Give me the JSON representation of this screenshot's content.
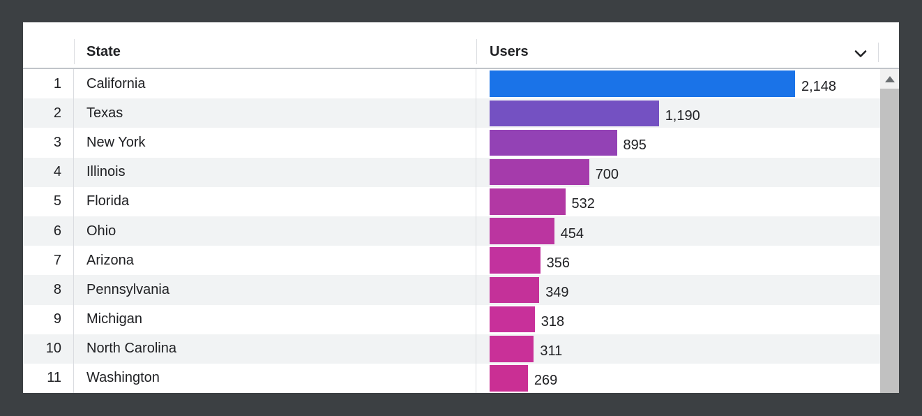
{
  "window": {
    "frame_color": "#3c4043"
  },
  "header": {
    "state_label": "State",
    "users_label": "Users"
  },
  "table": {
    "max_value": 2148,
    "rows": [
      {
        "index": "1",
        "state": "California",
        "users_label": "2,148",
        "users_value": 2148,
        "bar_color": "#1a73e8"
      },
      {
        "index": "2",
        "state": "Texas",
        "users_label": "1,190",
        "users_value": 1190,
        "bar_color": "#7451c2"
      },
      {
        "index": "3",
        "state": "New York",
        "users_label": "895",
        "users_value": 895,
        "bar_color": "#9342b5"
      },
      {
        "index": "4",
        "state": "Illinois",
        "users_label": "700",
        "users_value": 700,
        "bar_color": "#a53bab"
      },
      {
        "index": "5",
        "state": "Florida",
        "users_label": "532",
        "users_value": 532,
        "bar_color": "#b238a4"
      },
      {
        "index": "6",
        "state": "Ohio",
        "users_label": "454",
        "users_value": 454,
        "bar_color": "#bb35a0"
      },
      {
        "index": "7",
        "state": "Arizona",
        "users_label": "356",
        "users_value": 356,
        "bar_color": "#c2329e"
      },
      {
        "index": "8",
        "state": "Pennsylvania",
        "users_label": "349",
        "users_value": 349,
        "bar_color": "#c43199"
      },
      {
        "index": "9",
        "state": "Michigan",
        "users_label": "318",
        "users_value": 318,
        "bar_color": "#c8309a"
      },
      {
        "index": "10",
        "state": "North Carolina",
        "users_label": "311",
        "users_value": 311,
        "bar_color": "#c93098"
      },
      {
        "index": "11",
        "state": "Washington",
        "users_label": "269",
        "users_value": 269,
        "bar_color": "#ca2f94"
      }
    ]
  },
  "icons": {
    "sort_chevron": "chevron-down-icon",
    "scroll_up": "triangle-up-icon"
  },
  "colors": {
    "row_stripe": "#f1f3f4",
    "divider": "#dadce0",
    "header_border": "#c0c4c9",
    "text": "#202124",
    "scrollbar_track": "#f1f1f1",
    "scrollbar_thumb": "#c1c1c1",
    "bar_blue": "#1a73e8",
    "bar_magenta": "#ca2f94"
  },
  "chart_data": {
    "type": "bar",
    "orientation": "horizontal",
    "categories": [
      "California",
      "Texas",
      "New York",
      "Illinois",
      "Florida",
      "Ohio",
      "Arizona",
      "Pennsylvania",
      "Michigan",
      "North Carolina",
      "Washington"
    ],
    "values": [
      2148,
      1190,
      895,
      700,
      532,
      454,
      356,
      349,
      318,
      311,
      269
    ],
    "value_labels": [
      "2,148",
      "1,190",
      "895",
      "700",
      "532",
      "454",
      "356",
      "349",
      "318",
      "311",
      "269"
    ],
    "title": "",
    "xlabel": "Users",
    "ylabel": "State",
    "xlim": [
      0,
      2148
    ],
    "grid": false,
    "legend": false,
    "bar_colors": [
      "#1a73e8",
      "#7451c2",
      "#9342b5",
      "#a53bab",
      "#b238a4",
      "#bb35a0",
      "#c2329e",
      "#c43199",
      "#c8309a",
      "#c93098",
      "#ca2f94"
    ]
  }
}
